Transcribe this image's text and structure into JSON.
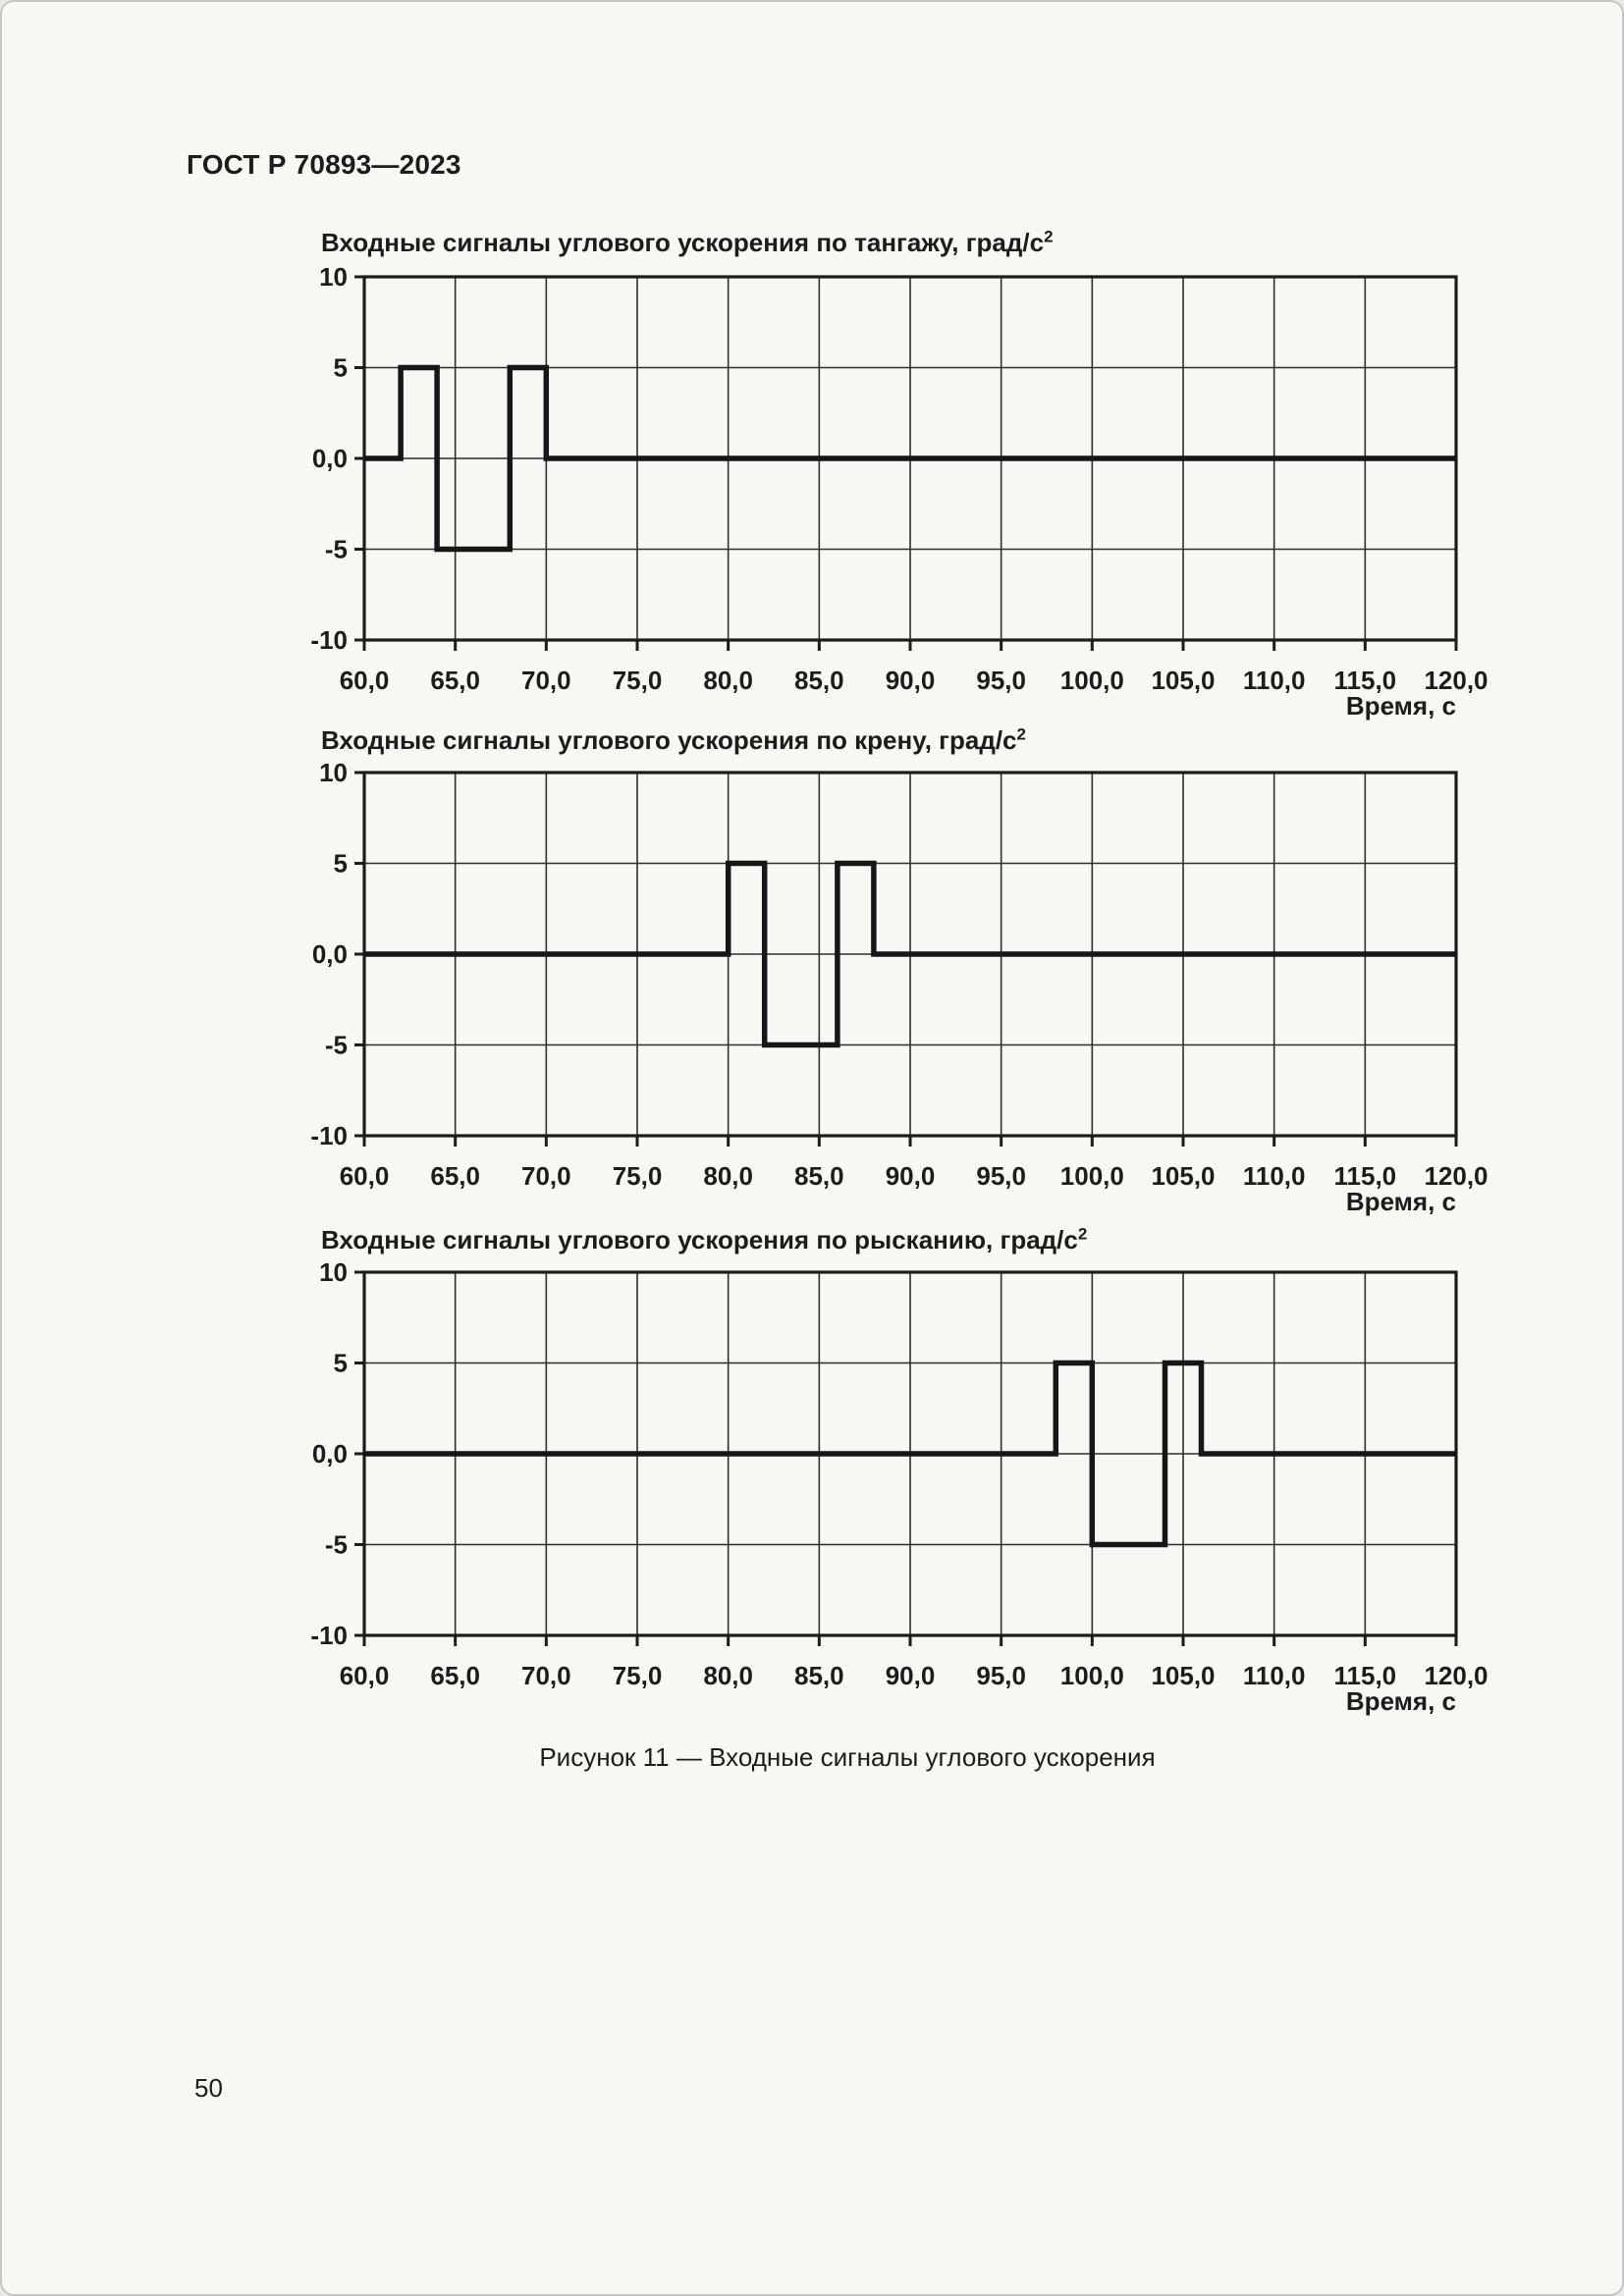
{
  "page": {
    "header_title": "ГОСТ Р 70893—2023",
    "figure_caption": "Рисунок 11 — Входные сигналы углового ускорения",
    "page_number": "50"
  },
  "colors": {
    "ink": "#1c1c1b",
    "signal": "#161616",
    "grid": "#2e2e2e",
    "page_background": "#f7f7f4",
    "frame_border": "#c6c6c4"
  },
  "chart_data": [
    {
      "type": "line",
      "title": "Входные сигналы углового ускорения по тангажу, град/с",
      "title_sup": "2",
      "xlabel": "Время, с",
      "ylabel": "",
      "xlim": [
        60,
        120
      ],
      "ylim": [
        -10,
        10
      ],
      "x_major_step": 5,
      "y_major_step": 5,
      "grid": true,
      "legend": false,
      "x_tick_labels": [
        "60,0",
        "65,0",
        "70,0",
        "75,0",
        "80,0",
        "85,0",
        "90,0",
        "95,0",
        "100,0",
        "105,0",
        "110,0",
        "115,0",
        "120,0"
      ],
      "y_tick_labels": [
        "10",
        "5",
        "0,0",
        "-5",
        "-10"
      ],
      "series": [
        {
          "name": "pitch-angular-acceleration-input",
          "x": [
            60,
            62,
            62,
            64,
            64,
            68,
            68,
            70,
            70,
            120
          ],
          "y": [
            0,
            0,
            5,
            5,
            -5,
            -5,
            5,
            5,
            0,
            0
          ]
        }
      ]
    },
    {
      "type": "line",
      "title": "Входные сигналы углового ускорения по крену, град/с",
      "title_sup": "2",
      "xlabel": "Время, с",
      "ylabel": "",
      "xlim": [
        60,
        120
      ],
      "ylim": [
        -10,
        10
      ],
      "x_major_step": 5,
      "y_major_step": 5,
      "grid": true,
      "legend": false,
      "x_tick_labels": [
        "60,0",
        "65,0",
        "70,0",
        "75,0",
        "80,0",
        "85,0",
        "90,0",
        "95,0",
        "100,0",
        "105,0",
        "110,0",
        "115,0",
        "120,0"
      ],
      "y_tick_labels": [
        "10",
        "5",
        "0,0",
        "-5",
        "-10"
      ],
      "series": [
        {
          "name": "roll-angular-acceleration-input",
          "x": [
            60,
            80,
            80,
            82,
            82,
            86,
            86,
            88,
            88,
            120
          ],
          "y": [
            0,
            0,
            5,
            5,
            -5,
            -5,
            5,
            5,
            0,
            0
          ]
        }
      ]
    },
    {
      "type": "line",
      "title": "Входные сигналы углового ускорения по рысканию, град/с",
      "title_sup": "2",
      "xlabel": "Время, с",
      "ylabel": "",
      "xlim": [
        60,
        120
      ],
      "ylim": [
        -10,
        10
      ],
      "x_major_step": 5,
      "y_major_step": 5,
      "grid": true,
      "legend": false,
      "x_tick_labels": [
        "60,0",
        "65,0",
        "70,0",
        "75,0",
        "80,0",
        "85,0",
        "90,0",
        "95,0",
        "100,0",
        "105,0",
        "110,0",
        "115,0",
        "120,0"
      ],
      "y_tick_labels": [
        "10",
        "5",
        "0,0",
        "-5",
        "-10"
      ],
      "series": [
        {
          "name": "yaw-angular-acceleration-input",
          "x": [
            60,
            98,
            98,
            100,
            100,
            104,
            104,
            106,
            106,
            120
          ],
          "y": [
            0,
            0,
            5,
            5,
            -5,
            -5,
            5,
            5,
            0,
            0
          ]
        }
      ]
    }
  ]
}
